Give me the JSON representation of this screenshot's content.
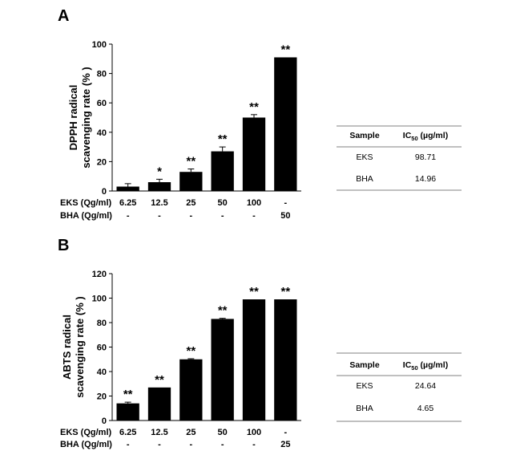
{
  "chart_data": [
    {
      "panel": "A",
      "type": "bar",
      "ylabel_lines": [
        "DPPH radical",
        "scavenging rate (% )"
      ],
      "ylim": [
        0,
        100
      ],
      "yticks": [
        0,
        20,
        40,
        60,
        80,
        100
      ],
      "categories": [
        "6.25",
        "12.5",
        "25",
        "50",
        "100",
        "-"
      ],
      "values": [
        3,
        6,
        13,
        27,
        50,
        91
      ],
      "errors": [
        2,
        2,
        2,
        3,
        2,
        0
      ],
      "significance": [
        "",
        "*",
        "**",
        "**",
        "**",
        "**"
      ],
      "rows": [
        {
          "label": "EKS (Qg/ml)",
          "values": [
            "6.25",
            "12.5",
            "25",
            "50",
            "100",
            "-"
          ]
        },
        {
          "label": "BHA (Qg/ml)",
          "values": [
            "-",
            "-",
            "-",
            "-",
            "-",
            "50"
          ]
        }
      ],
      "table": {
        "header": [
          "Sample",
          "IC",
          "50",
          " (µg/ml)"
        ],
        "rows": [
          [
            "EKS",
            "98.71"
          ],
          [
            "BHA",
            "14.96"
          ]
        ]
      }
    },
    {
      "panel": "B",
      "type": "bar",
      "ylabel_lines": [
        "ABTS radical",
        "scavenging rate (% )"
      ],
      "ylim": [
        0,
        120
      ],
      "yticks": [
        0,
        20,
        40,
        60,
        80,
        100,
        120
      ],
      "categories": [
        "6.25",
        "12.5",
        "25",
        "50",
        "100",
        "-"
      ],
      "values": [
        14,
        27,
        50,
        83,
        99,
        99
      ],
      "errors": [
        1,
        0,
        0.5,
        0.5,
        0,
        0
      ],
      "significance": [
        "**",
        "**",
        "**",
        "**",
        "**",
        "**"
      ],
      "rows": [
        {
          "label": "EKS (Qg/ml)",
          "values": [
            "6.25",
            "12.5",
            "25",
            "50",
            "100",
            "-"
          ]
        },
        {
          "label": "BHA (Qg/ml)",
          "values": [
            "-",
            "-",
            "-",
            "-",
            "-",
            "25"
          ]
        }
      ],
      "table": {
        "header": [
          "Sample",
          "IC",
          "50",
          " (µg/ml)"
        ],
        "rows": [
          [
            "EKS",
            "24.64"
          ],
          [
            "BHA",
            "4.65"
          ]
        ]
      }
    }
  ],
  "colors": {
    "bar": "#000000",
    "axis": "#000000",
    "table_rule": "#808080"
  }
}
